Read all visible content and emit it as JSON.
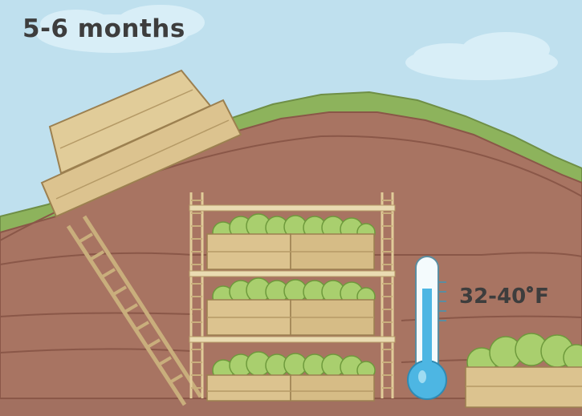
{
  "labels": {
    "duration": "5-6 months",
    "temp_value": "32-40",
    "temp_unit": "F"
  },
  "colors": {
    "sky": "#bfe0ee",
    "grass": "#8db35c",
    "soil": "#a87462",
    "soil_dark": "#8a5748",
    "wood": "#e1cc99",
    "cabbage": "#a9cf6e",
    "thermometer": "#4db6e3"
  }
}
